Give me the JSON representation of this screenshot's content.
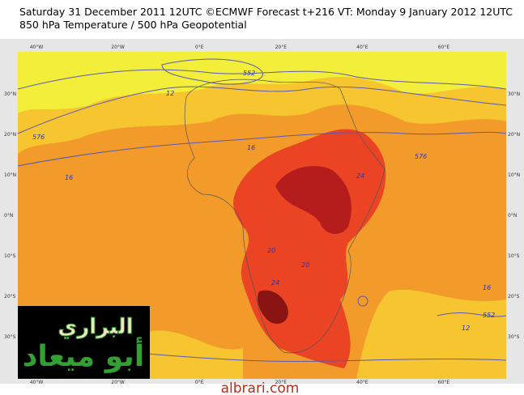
{
  "header": {
    "line1": "Saturday 31 December 2011 12UTC ©ECMWF Forecast t+216 VT: Monday 9 January 2012 12UTC",
    "line2": "850 hPa Temperature / 500 hPa Geopotential"
  },
  "map": {
    "longitudes": [
      "40°W",
      "20°W",
      "0°E",
      "20°E",
      "40°E",
      "60°E"
    ],
    "latitudes": [
      "30°N",
      "20°N",
      "10°N",
      "0°N",
      "10°S",
      "20°S",
      "30°S"
    ],
    "contour_labels": [
      "552",
      "576",
      "12",
      "16",
      "16",
      "20",
      "24",
      "20",
      "24",
      "12",
      "552",
      "576",
      "16"
    ]
  },
  "logo": {
    "line1": "البراري",
    "line2": "أبو ميعاد"
  },
  "footer": "albrari.com"
}
